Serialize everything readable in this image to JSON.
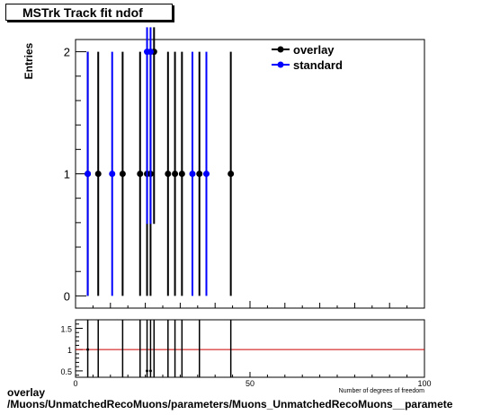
{
  "title": "MSTrk Track fit ndof",
  "footer_line1": "overlay",
  "footer_line2": "/Muons/UnmatchedRecoMuons/parameters/Muons_UnmatchedRecoMuons__paramete",
  "chart_data": {
    "type": "scatter",
    "ylabel": "Entries",
    "xlabel": "Number of degrees of freedom",
    "xlim": [
      0,
      100
    ],
    "ylim": [
      -0.1,
      2.1
    ],
    "y_ticks": [
      "0",
      "1",
      "2"
    ],
    "x_ticks": [
      "0",
      "50",
      "100"
    ],
    "legend_position": "top-right",
    "series": [
      {
        "name": "overlay",
        "color": "#000000",
        "x": [
          3.5,
          6.5,
          13.5,
          18.5,
          20.5,
          21.5,
          22.5,
          26.5,
          28.5,
          30.5,
          35.5,
          44.5
        ],
        "y": [
          1,
          1,
          1,
          1,
          1,
          1,
          2,
          1,
          1,
          1,
          1,
          1
        ],
        "yerr": [
          1,
          1,
          1,
          1,
          1,
          1,
          1.41,
          1,
          1,
          1,
          1,
          1
        ]
      },
      {
        "name": "standard",
        "color": "#0000ff",
        "x": [
          3.5,
          10.5,
          20.5,
          21.5,
          33.5,
          37.5
        ],
        "y": [
          1,
          1,
          2,
          2,
          1,
          1
        ],
        "yerr": [
          1,
          1,
          1.41,
          1.41,
          1,
          1
        ]
      }
    ],
    "ratio": {
      "y_ticks": [
        "0.5",
        "1",
        "1.5"
      ],
      "ylim": [
        0.35,
        1.7
      ],
      "reference_line": 1,
      "reference_color": "#cc0000"
    }
  }
}
